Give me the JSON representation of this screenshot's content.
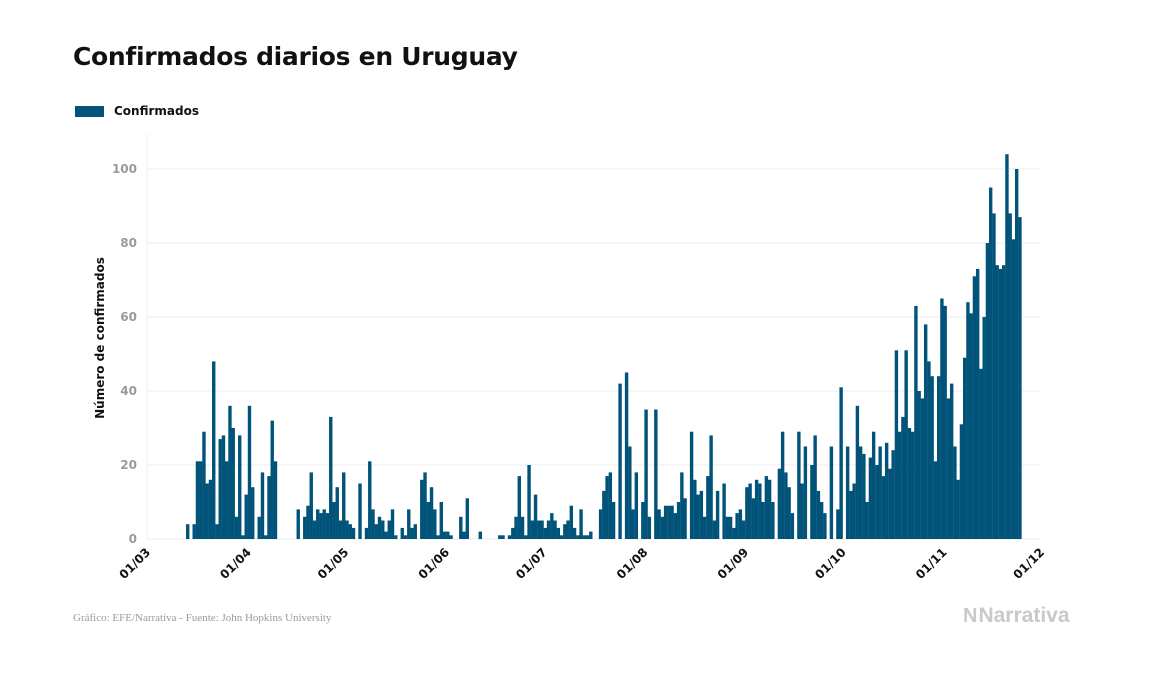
{
  "chart_data": {
    "type": "bar",
    "title": "Confirmados diarios en Uruguay",
    "xlabel": "",
    "ylabel": "Número de confirmados",
    "legend": [
      {
        "name": "Confirmados",
        "color": "#02537a"
      }
    ],
    "legend_position": "top-left",
    "grid": true,
    "ylim": [
      0,
      109
    ],
    "yticks": [
      0,
      20,
      40,
      60,
      80,
      100
    ],
    "x_start_date": "01/03",
    "x_total_days": 275,
    "xticks": [
      {
        "label": "01/03",
        "day": 0
      },
      {
        "label": "01/04",
        "day": 31
      },
      {
        "label": "01/05",
        "day": 61
      },
      {
        "label": "01/06",
        "day": 92
      },
      {
        "label": "01/07",
        "day": 122
      },
      {
        "label": "01/08",
        "day": 153
      },
      {
        "label": "01/09",
        "day": 184
      },
      {
        "label": "01/10",
        "day": 214
      },
      {
        "label": "01/11",
        "day": 245
      },
      {
        "label": "01/12",
        "day": 275
      }
    ],
    "series": [
      {
        "name": "Confirmados",
        "color": "#02537a",
        "first_day": 12,
        "values": [
          4,
          0,
          4,
          21,
          21,
          29,
          15,
          16,
          48,
          4,
          27,
          28,
          21,
          36,
          30,
          6,
          28,
          1,
          12,
          36,
          14,
          0,
          6,
          18,
          1,
          17,
          32,
          21,
          0,
          0,
          0,
          0,
          0,
          0,
          8,
          0,
          6,
          9,
          18,
          5,
          8,
          7,
          8,
          7,
          33,
          10,
          14,
          5,
          18,
          5,
          4,
          3,
          0,
          15,
          0,
          3,
          21,
          8,
          4,
          6,
          5,
          2,
          5,
          8,
          1,
          0,
          3,
          1,
          8,
          3,
          4,
          0,
          16,
          18,
          10,
          14,
          8,
          1,
          10,
          2,
          2,
          1,
          0,
          0,
          6,
          2,
          11,
          0,
          0,
          0,
          2,
          0,
          0,
          0,
          0,
          0,
          1,
          1,
          0,
          1,
          3,
          6,
          17,
          6,
          1,
          20,
          5,
          12,
          5,
          5,
          3,
          5,
          7,
          5,
          3,
          1,
          4,
          5,
          9,
          3,
          1,
          8,
          1,
          1,
          2,
          0,
          0,
          8,
          13,
          17,
          18,
          10,
          0,
          42,
          0,
          45,
          25,
          8,
          18,
          0,
          10,
          35,
          6,
          0,
          35,
          8,
          6,
          9,
          9,
          9,
          7,
          10,
          18,
          11,
          0,
          29,
          16,
          12,
          13,
          6,
          17,
          28,
          5,
          13,
          0,
          15,
          6,
          6,
          3,
          7,
          8,
          5,
          14,
          15,
          11,
          16,
          15,
          10,
          17,
          16,
          10,
          0,
          19,
          29,
          18,
          14,
          7,
          0,
          29,
          15,
          25,
          0,
          20,
          28,
          13,
          10,
          7,
          0,
          25,
          0,
          8,
          41,
          0,
          25,
          13,
          15,
          36,
          25,
          23,
          10,
          22,
          29,
          20,
          25,
          17,
          26,
          19,
          24,
          51,
          29,
          33,
          51,
          30,
          29,
          63,
          40,
          38,
          58,
          48,
          44,
          21,
          44,
          65,
          63,
          38,
          42,
          25,
          16,
          31,
          49,
          64,
          61,
          71,
          73,
          46,
          60,
          80,
          95,
          88,
          74,
          73,
          74,
          104,
          88,
          81,
          100,
          87
        ]
      }
    ]
  },
  "footer": {
    "source": "Gráfico: EFE/Narrativa - Fuente: John Hopkins University",
    "brand": "Narrativa",
    "brand_mark": "N"
  }
}
